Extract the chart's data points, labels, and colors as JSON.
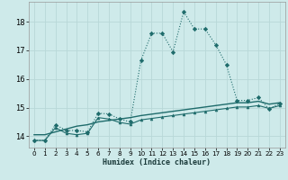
{
  "xlabel": "Humidex (Indice chaleur)",
  "bg_color": "#ceeaea",
  "grid_color": "#b8d8d8",
  "line_color": "#1e6b6b",
  "xlim": [
    -0.5,
    23.5
  ],
  "ylim": [
    13.6,
    18.7
  ],
  "yticks": [
    14,
    15,
    16,
    17,
    18
  ],
  "xticks": [
    0,
    1,
    2,
    3,
    4,
    5,
    6,
    7,
    8,
    9,
    10,
    11,
    12,
    13,
    14,
    15,
    16,
    17,
    18,
    19,
    20,
    21,
    22,
    23
  ],
  "series1_x": [
    0,
    1,
    2,
    3,
    4,
    5,
    6,
    7,
    8,
    9,
    10,
    11,
    12,
    13,
    14,
    15,
    16,
    17,
    18,
    19,
    20,
    21,
    22,
    23
  ],
  "series1_y": [
    13.85,
    13.85,
    14.4,
    14.2,
    14.2,
    14.15,
    14.8,
    14.78,
    14.6,
    14.5,
    16.65,
    17.6,
    17.6,
    16.95,
    18.35,
    17.75,
    17.75,
    17.2,
    16.5,
    15.25,
    15.25,
    15.35,
    14.95,
    15.15
  ],
  "series2_x": [
    0,
    1,
    2,
    3,
    4,
    5,
    6,
    7,
    8,
    9,
    10,
    11,
    12,
    13,
    14,
    15,
    16,
    17,
    18,
    19,
    20,
    21,
    22,
    23
  ],
  "series2_y": [
    14.05,
    14.05,
    14.15,
    14.25,
    14.35,
    14.4,
    14.5,
    14.55,
    14.6,
    14.65,
    14.72,
    14.77,
    14.82,
    14.87,
    14.92,
    14.97,
    15.02,
    15.07,
    15.12,
    15.17,
    15.17,
    15.22,
    15.12,
    15.17
  ],
  "series3_x": [
    0,
    1,
    2,
    3,
    4,
    5,
    6,
    7,
    8,
    9,
    10,
    11,
    12,
    13,
    14,
    15,
    16,
    17,
    18,
    19,
    20,
    21,
    22,
    23
  ],
  "series3_y": [
    13.85,
    13.85,
    14.3,
    14.1,
    14.05,
    14.1,
    14.65,
    14.6,
    14.48,
    14.42,
    14.57,
    14.62,
    14.67,
    14.72,
    14.77,
    14.82,
    14.87,
    14.92,
    14.97,
    15.02,
    15.02,
    15.07,
    14.97,
    15.07
  ]
}
